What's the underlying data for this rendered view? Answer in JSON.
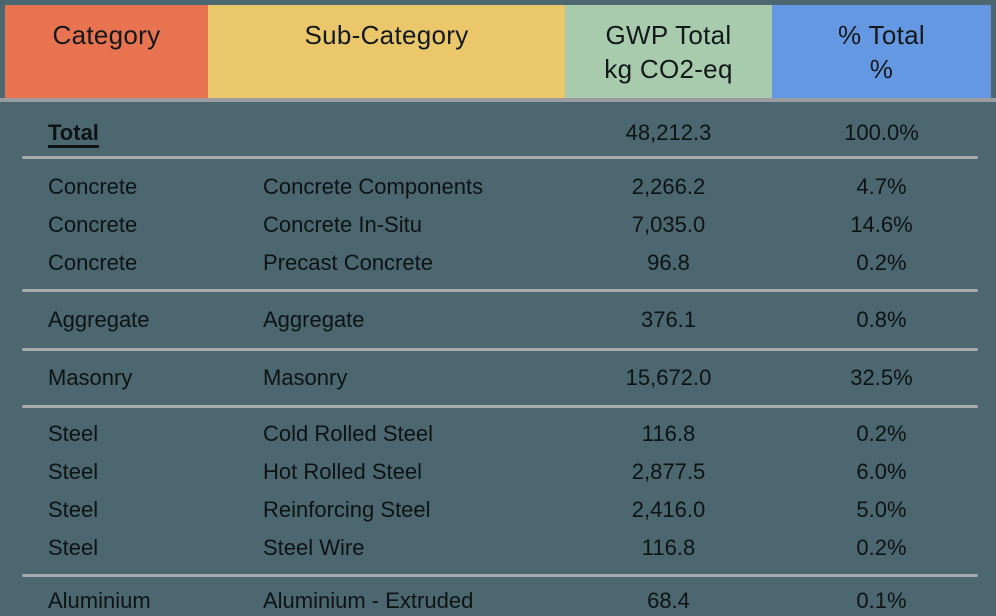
{
  "table": {
    "columns": [
      {
        "label": "Category",
        "sublabel": "",
        "color": "#e87350"
      },
      {
        "label": "Sub-Category",
        "sublabel": "",
        "color": "#e9c76a"
      },
      {
        "label": "GWP Total",
        "sublabel": "kg CO2-eq",
        "color": "#a7cbac"
      },
      {
        "label": "% Total",
        "sublabel": "%",
        "color": "#6598e2"
      }
    ],
    "rows": [
      {
        "category": "Total",
        "subcategory": "",
        "gwp": "48,212.3",
        "pct": "100.0%"
      },
      {
        "category": "Concrete",
        "subcategory": "Concrete Components",
        "gwp": "2,266.2",
        "pct": "4.7%"
      },
      {
        "category": "Concrete",
        "subcategory": "Concrete In-Situ",
        "gwp": "7,035.0",
        "pct": "14.6%"
      },
      {
        "category": "Concrete",
        "subcategory": "Precast Concrete",
        "gwp": "96.8",
        "pct": "0.2%"
      },
      {
        "category": "Aggregate",
        "subcategory": "Aggregate",
        "gwp": "376.1",
        "pct": "0.8%"
      },
      {
        "category": "Masonry",
        "subcategory": "Masonry",
        "gwp": "15,672.0",
        "pct": "32.5%"
      },
      {
        "category": "Steel",
        "subcategory": "Cold Rolled Steel",
        "gwp": "116.8",
        "pct": "0.2%"
      },
      {
        "category": "Steel",
        "subcategory": "Hot Rolled Steel",
        "gwp": "2,877.5",
        "pct": "6.0%"
      },
      {
        "category": "Steel",
        "subcategory": "Reinforcing Steel",
        "gwp": "2,416.0",
        "pct": "5.0%"
      },
      {
        "category": "Steel",
        "subcategory": "Steel Wire",
        "gwp": "116.8",
        "pct": "0.2%"
      },
      {
        "category": "Aluminium",
        "subcategory": "Aluminium - Extruded",
        "gwp": "68.4",
        "pct": "0.1%"
      }
    ]
  },
  "colors": {
    "background": "#4d6770",
    "header_category": "#e87350",
    "header_subcategory": "#e9c76a",
    "header_gwp": "#a7cbac",
    "header_pct": "#6598e2",
    "divider": "#a9abae",
    "header_underline": "#9b9ca1",
    "text": "#0e1314"
  },
  "chart_data": {
    "type": "table",
    "title": "",
    "columns": [
      "Category",
      "Sub-Category",
      "GWP Total (kg CO2-eq)",
      "% Total (%)"
    ],
    "rows": [
      [
        "Total",
        "",
        48212.3,
        100.0
      ],
      [
        "Concrete",
        "Concrete Components",
        2266.2,
        4.7
      ],
      [
        "Concrete",
        "Concrete In-Situ",
        7035.0,
        14.6
      ],
      [
        "Concrete",
        "Precast Concrete",
        96.8,
        0.2
      ],
      [
        "Aggregate",
        "Aggregate",
        376.1,
        0.8
      ],
      [
        "Masonry",
        "Masonry",
        15672.0,
        32.5
      ],
      [
        "Steel",
        "Cold Rolled Steel",
        116.8,
        0.2
      ],
      [
        "Steel",
        "Hot Rolled Steel",
        2877.5,
        6.0
      ],
      [
        "Steel",
        "Reinforcing Steel",
        2416.0,
        5.0
      ],
      [
        "Steel",
        "Steel Wire",
        116.8,
        0.2
      ],
      [
        "Aluminium",
        "Aluminium - Extruded",
        68.4,
        0.1
      ]
    ]
  }
}
